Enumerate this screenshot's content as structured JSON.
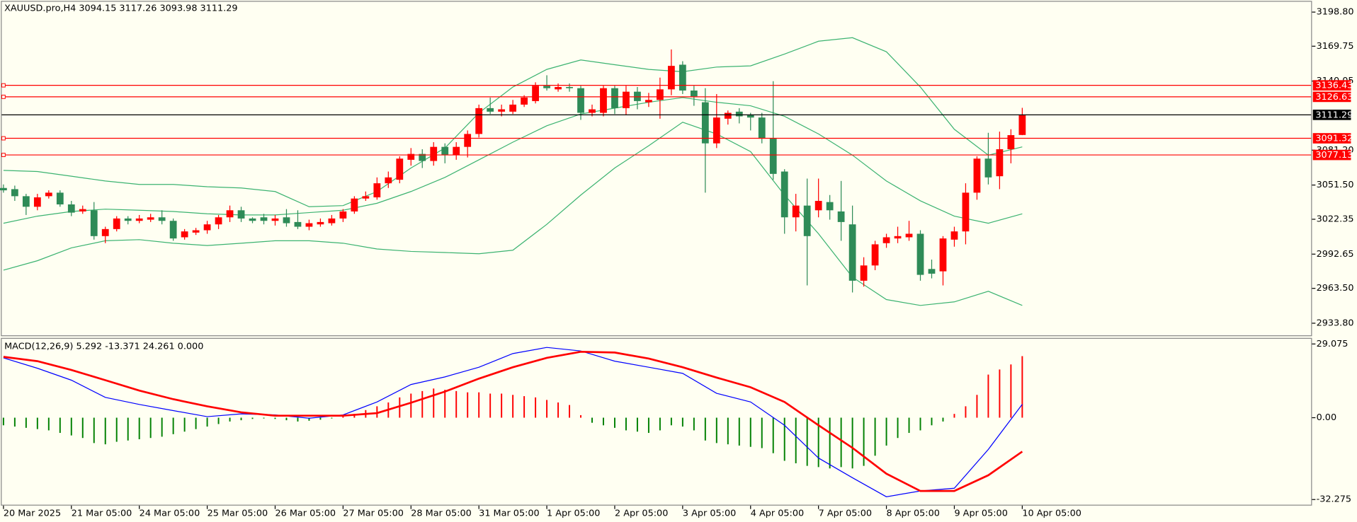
{
  "chart_data": [
    {
      "type": "candlestick",
      "title": "XAUUSD.pro,H4  3094.15 3117.26 3093.98 3111.29",
      "categories": [
        "20 Mar 2025",
        null,
        null,
        null,
        null,
        null,
        "21 Mar 05:00",
        null,
        null,
        null,
        null,
        null,
        "24 Mar 05:00",
        null,
        null,
        null,
        null,
        null,
        "25 Mar 05:00",
        null,
        null,
        null,
        null,
        null,
        "26 Mar 05:00",
        null,
        null,
        null,
        null,
        null,
        "27 Mar 05:00",
        null,
        null,
        null,
        null,
        null,
        "28 Mar 05:00",
        null,
        null,
        null,
        null,
        null,
        "31 Mar 05:00",
        null,
        null,
        null,
        null,
        null,
        "1 Apr 05:00",
        null,
        null,
        null,
        null,
        null,
        "2 Apr 05:00",
        null,
        null,
        null,
        null,
        null,
        "3 Apr 05:00",
        null,
        null,
        null,
        null,
        null,
        "4 Apr 05:00",
        null,
        null,
        null,
        null,
        null,
        "7 Apr 05:00",
        null,
        null,
        null,
        null,
        null,
        "8 Apr 05:00",
        null,
        null,
        null,
        null,
        null,
        "9 Apr 05:00",
        null,
        null,
        null,
        null,
        null,
        "10 Apr 05:00"
      ],
      "open": [
        3049,
        3048,
        3042,
        3033,
        3042,
        3045,
        3035,
        3029,
        3030,
        3008,
        3014,
        3023,
        3021,
        3022,
        3024,
        3021,
        3007,
        3011,
        3013,
        3018,
        3024,
        3030,
        3023,
        3024,
        3021,
        3024,
        3020,
        3016,
        3018,
        3019,
        3023,
        3029,
        3040,
        3041,
        3053,
        3056,
        3073,
        3078,
        3072,
        3084,
        3077,
        3084,
        3095,
        3117,
        3114,
        3114,
        3120,
        3123,
        3136,
        3133,
        3135,
        3134,
        3113,
        3113,
        3134,
        3117,
        3131,
        3122,
        3124,
        3133,
        3154,
        3132,
        3122,
        3087,
        3108,
        3114,
        3111,
        3109,
        3091,
        3063,
        3024,
        3034,
        3030,
        3037,
        3029,
        3018,
        2970,
        2983,
        3002,
        3006,
        3007,
        3010,
        2980,
        2978,
        3005,
        3012,
        3045,
        3074,
        3059,
        3082,
        3094.15
      ],
      "high": [
        3052,
        3051,
        3044,
        3044,
        3047,
        3047,
        3038,
        3034,
        3037,
        3016,
        3025,
        3025,
        3026,
        3027,
        3030,
        3023,
        3014,
        3015,
        3021,
        3026,
        3034,
        3033,
        3024,
        3027,
        3026,
        3031,
        3030,
        3022,
        3023,
        3026,
        3031,
        3042,
        3046,
        3058,
        3063,
        3076,
        3083,
        3082,
        3088,
        3087,
        3088,
        3098,
        3120,
        3126,
        3120,
        3124,
        3128,
        3139,
        3145,
        3138,
        3138,
        3136,
        3120,
        3136,
        3136,
        3136,
        3135,
        3130,
        3143,
        3167,
        3157,
        3136,
        3134,
        3129,
        3115,
        3117,
        3113,
        3113,
        3140,
        3065,
        3044,
        3057,
        3057,
        3043,
        3055,
        3034,
        2990,
        3004,
        3010,
        3016,
        3021,
        3013,
        2988,
        3008,
        3016,
        3053,
        3076,
        3096,
        3097,
        3099,
        3117.26
      ],
      "low": [
        3045,
        3038,
        3026,
        3030,
        3040,
        3033,
        3025,
        3027,
        3005,
        3002,
        3012,
        3018,
        3019,
        3020,
        3018,
        3004,
        3005,
        3009,
        3010,
        3014,
        3020,
        3020,
        3019,
        3018,
        3017,
        3016,
        3014,
        3013,
        3016,
        3017,
        3020,
        3027,
        3038,
        3039,
        3049,
        3053,
        3068,
        3066,
        3068,
        3070,
        3073,
        3075,
        3092,
        3112,
        3110,
        3112,
        3118,
        3121,
        3132,
        3131,
        3131,
        3107,
        3110,
        3110,
        3112,
        3111,
        3116,
        3118,
        3108,
        3128,
        3129,
        3119,
        3045,
        3083,
        3103,
        3104,
        3098,
        3087,
        3056,
        3010,
        3012,
        2966,
        3024,
        3022,
        3004,
        2960,
        2965,
        2979,
        2998,
        3002,
        3004,
        2970,
        2972,
        2966,
        2999,
        3001,
        3039,
        3052,
        3048,
        3070,
        3093.98
      ],
      "close": [
        3047,
        3042,
        3033,
        3041,
        3045,
        3035,
        3028,
        3031,
        3008,
        3014,
        3023,
        3021,
        3023,
        3024,
        3021,
        3006,
        3012,
        3013,
        3018,
        3024,
        3030,
        3023,
        3021,
        3021,
        3023,
        3019,
        3016,
        3019,
        3020,
        3023,
        3029,
        3040,
        3042,
        3053,
        3058,
        3074,
        3078,
        3072,
        3084,
        3077,
        3084,
        3095,
        3117,
        3114,
        3116,
        3120,
        3126,
        3136,
        3134,
        3135,
        3134,
        3113,
        3116,
        3134,
        3117,
        3131,
        3123,
        3124,
        3133,
        3153,
        3132,
        3127,
        3087,
        3109,
        3113,
        3110,
        3109,
        3091,
        3061,
        3024,
        3034,
        3008,
        3038,
        3030,
        3020,
        2970,
        2983,
        3001,
        3007,
        3008,
        3010,
        2975,
        2976,
        3006,
        3012,
        3045,
        3074,
        3058,
        3082,
        3094,
        3111.29
      ],
      "up_color": "#ff0000",
      "down_color": "#2e8b57",
      "ylim": [
        2933.8,
        3198.8
      ],
      "yticks": [
        {
          "value": 3198.8,
          "label": "3198.80"
        },
        3169.75,
        3140.05,
        {
          "value": 3081.2,
          "label": "3081.20"
        },
        {
          "value": 3051.5,
          "label": "3051.50"
        },
        3022.35,
        2992.65,
        {
          "value": 2963.5,
          "label": "2963.50"
        },
        {
          "value": 2933.8,
          "label": "2933.80"
        }
      ],
      "bands": {
        "color": "#3cb371",
        "index": [
          0,
          3,
          6,
          9,
          12,
          15,
          18,
          21,
          24,
          27,
          30,
          33,
          36,
          39,
          42,
          45,
          48,
          51,
          54,
          57,
          60,
          63,
          66,
          69,
          72,
          75,
          78,
          81,
          84,
          87,
          90
        ],
        "upper": [
          3064,
          3063,
          3059,
          3055,
          3052,
          3052,
          3050,
          3049,
          3046,
          3033,
          3034,
          3046,
          3066,
          3083,
          3113,
          3135,
          3150,
          3158,
          3154,
          3150,
          3148,
          3152,
          3153,
          3163,
          3174,
          3177,
          3165,
          3135,
          3099,
          3077,
          3084
        ],
        "middle": [
          3019,
          3025,
          3029,
          3031,
          3030,
          3029,
          3027,
          3026,
          3026,
          3028,
          3030,
          3036,
          3046,
          3058,
          3073,
          3088,
          3102,
          3112,
          3117,
          3122,
          3126,
          3122,
          3119,
          3110,
          3095,
          3077,
          3055,
          3038,
          3025,
          3019,
          3027
        ],
        "lower": [
          2979,
          2987,
          2998,
          3004,
          3005,
          3002,
          3000,
          3002,
          3004,
          3004,
          3002,
          2997,
          2995,
          2994,
          2993,
          2996,
          3018,
          3043,
          3066,
          3085,
          3105,
          3095,
          3080,
          3043,
          3010,
          2973,
          2954,
          2949,
          2952,
          2961,
          2949
        ]
      },
      "levels": [
        {
          "value": 3136.43,
          "color": "#ff0000"
        },
        {
          "value": 3126.63,
          "color": "#ff0000"
        },
        {
          "value": 3111.29,
          "color": "#000000"
        },
        {
          "value": 3091.32,
          "color": "#ff0000"
        },
        {
          "value": 3077.13,
          "color": "#ff0000"
        }
      ]
    },
    {
      "type": "macd",
      "title": "MACD(12,26,9) 5.292 -13.371 24.261 0.000",
      "histogram": [
        -3,
        -3.5,
        -4,
        -4.5,
        -5,
        -6,
        -7,
        -8,
        -10,
        -10.5,
        -9.5,
        -9,
        -8.5,
        -8,
        -7.5,
        -6.5,
        -5.5,
        -4.5,
        -3.5,
        -2.5,
        -1.5,
        -1,
        -0.5,
        -0.3,
        -0.5,
        -1,
        -1.5,
        -1.2,
        -0.8,
        -0.3,
        0.5,
        1.5,
        3,
        4.5,
        6,
        8,
        9.5,
        10.5,
        11.5,
        11,
        10.5,
        10,
        10,
        9.5,
        9.5,
        9,
        8.5,
        8,
        7,
        6,
        5,
        1,
        -2,
        -3,
        -4,
        -5,
        -5.5,
        -6,
        -5,
        -3,
        -3.5,
        -5,
        -9,
        -10,
        -10.5,
        -11,
        -11.5,
        -12,
        -14,
        -17,
        -18,
        -19,
        -19.5,
        -20,
        -19.5,
        -20,
        -19,
        -15,
        -11,
        -8,
        -6,
        -5,
        -3,
        -1.5,
        1.5,
        4.5,
        9,
        17,
        19,
        21,
        24.261
      ],
      "up_color": "#ff0000",
      "down_color": "#008000",
      "index": [
        0,
        3,
        6,
        9,
        12,
        15,
        18,
        21,
        24,
        27,
        30,
        33,
        36,
        39,
        42,
        45,
        48,
        51,
        54,
        57,
        60,
        63,
        66,
        69,
        72,
        75,
        78,
        81,
        84,
        87,
        90
      ],
      "main": {
        "color": "#0000ff",
        "values": [
          23.6,
          19.5,
          14.8,
          8,
          5.2,
          2.8,
          0.4,
          1.5,
          1.1,
          -0.2,
          1.1,
          6.2,
          13.1,
          16.1,
          19.9,
          25.3,
          27.7,
          26.3,
          22.3,
          19.9,
          17.5,
          9.6,
          6.2,
          -3,
          -15.9,
          -23.7,
          -31.2,
          -28.9,
          -27.8,
          -12.5,
          5.292
        ]
      },
      "signal": {
        "color": "#ff0000",
        "values": [
          24,
          22.3,
          18.8,
          14.8,
          10.7,
          7.3,
          4.5,
          2.1,
          0.8,
          0.8,
          0.8,
          1.8,
          5.9,
          10.3,
          15.4,
          19.9,
          23.6,
          26,
          25.7,
          23.3,
          19.9,
          15.8,
          12,
          6.2,
          -3,
          -11.9,
          -22.1,
          -28.9,
          -28.9,
          -22.7,
          -13.371
        ]
      },
      "ylim": [
        -32.275,
        29.075
      ],
      "yticks": [
        29.075,
        {
          "value": 0,
          "label": "0.00"
        },
        -32.275
      ]
    }
  ]
}
